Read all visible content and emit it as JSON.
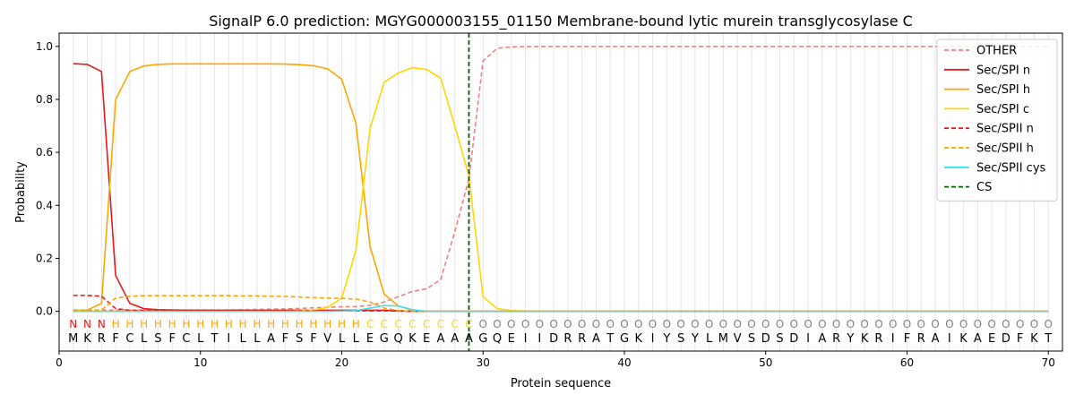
{
  "chart_data": {
    "type": "line",
    "title": "SignalP 6.0 prediction: MGYG000003155_01150 Membrane-bound lytic murein transglycosylase C",
    "xlabel": "Protein sequence",
    "ylabel": "Probability",
    "xlim": [
      0,
      71
    ],
    "ylim": [
      -0.15,
      1.05
    ],
    "xticks": [
      0,
      10,
      20,
      30,
      40,
      50,
      60,
      70
    ],
    "yticks": [
      0.0,
      0.2,
      0.4,
      0.6,
      0.8,
      1.0
    ],
    "ytick_labels": [
      "0.0",
      "0.2",
      "0.4",
      "0.6",
      "0.8",
      "1.0"
    ],
    "grid": "vertical lines at each residue",
    "legend_position": "top-right",
    "cleavage_site": {
      "name": "CS",
      "x": 29,
      "color": "#006400"
    },
    "sequence": [
      "M",
      "K",
      "R",
      "F",
      "C",
      "L",
      "S",
      "F",
      "C",
      "L",
      "T",
      "I",
      "L",
      "L",
      "A",
      "F",
      "S",
      "F",
      "V",
      "L",
      "L",
      "E",
      "G",
      "Q",
      "K",
      "E",
      "A",
      "A",
      "A",
      "G",
      "Q",
      "E",
      "I",
      "I",
      "D",
      "R",
      "R",
      "A",
      "T",
      "G",
      "K",
      "I",
      "Y",
      "S",
      "Y",
      "L",
      "M",
      "V",
      "S",
      "D",
      "S",
      "D",
      "I",
      "A",
      "R",
      "Y",
      "K",
      "R",
      "I",
      "F",
      "R",
      "A",
      "I",
      "K",
      "A",
      "E",
      "D",
      "F",
      "K",
      "T"
    ],
    "labels": [
      "N",
      "N",
      "N",
      "H",
      "H",
      "H",
      "H",
      "H",
      "H",
      "H",
      "H",
      "H",
      "H",
      "H",
      "H",
      "H",
      "H",
      "H",
      "H",
      "H",
      "H",
      "C",
      "C",
      "C",
      "C",
      "C",
      "C",
      "C",
      "C",
      "O",
      "O",
      "O",
      "O",
      "O",
      "O",
      "O",
      "O",
      "O",
      "O",
      "O",
      "O",
      "O",
      "O",
      "O",
      "O",
      "O",
      "O",
      "O",
      "O",
      "O",
      "O",
      "O",
      "O",
      "O",
      "O",
      "O",
      "O",
      "O",
      "O",
      "O",
      "O",
      "O",
      "O",
      "O",
      "O",
      "O",
      "O",
      "O",
      "O",
      "O"
    ],
    "label_colors": {
      "N": "#e41a1c",
      "H": "#ffa500",
      "C": "#ffd700",
      "O": "#808080"
    },
    "x": [
      1,
      2,
      3,
      4,
      5,
      6,
      7,
      8,
      9,
      10,
      11,
      12,
      13,
      14,
      15,
      16,
      17,
      18,
      19,
      20,
      21,
      22,
      23,
      24,
      25,
      26,
      27,
      28,
      29,
      30,
      31,
      32,
      33,
      34,
      35,
      36,
      37,
      38,
      39,
      40,
      41,
      42,
      43,
      44,
      45,
      46,
      47,
      48,
      49,
      50,
      51,
      52,
      53,
      54,
      55,
      56,
      57,
      58,
      59,
      60,
      61,
      62,
      63,
      64,
      65,
      66,
      67,
      68,
      69,
      70
    ],
    "series": [
      {
        "name": "OTHER",
        "color": "#f08080",
        "dash": "dashed",
        "values": [
          0.005,
          0.005,
          0.005,
          0.005,
          0.005,
          0.005,
          0.005,
          0.005,
          0.005,
          0.005,
          0.005,
          0.005,
          0.006,
          0.007,
          0.008,
          0.009,
          0.011,
          0.013,
          0.015,
          0.017,
          0.018,
          0.022,
          0.035,
          0.055,
          0.075,
          0.085,
          0.12,
          0.3,
          0.5,
          0.945,
          0.993,
          0.998,
          0.999,
          1.0,
          1.0,
          1.0,
          1.0,
          1.0,
          1.0,
          1.0,
          1.0,
          1.0,
          1.0,
          1.0,
          1.0,
          1.0,
          1.0,
          1.0,
          1.0,
          1.0,
          1.0,
          1.0,
          1.0,
          1.0,
          1.0,
          1.0,
          1.0,
          1.0,
          1.0,
          1.0,
          1.0,
          1.0,
          1.0,
          1.0,
          1.0,
          1.0,
          1.0,
          1.0,
          1.0,
          1.0
        ]
      },
      {
        "name": "Sec/SPI n",
        "color": "#e41a1c",
        "dash": "solid",
        "values": [
          0.935,
          0.932,
          0.905,
          0.135,
          0.03,
          0.01,
          0.006,
          0.005,
          0.004,
          0.004,
          0.004,
          0.004,
          0.004,
          0.004,
          0.004,
          0.004,
          0.004,
          0.004,
          0.004,
          0.004,
          0.004,
          0.004,
          0.004,
          0.002,
          0.0,
          0.0,
          0.0,
          0.0,
          0.0,
          0.0,
          0.0,
          0.0,
          0.0,
          0.0,
          0.0,
          0.0,
          0.0,
          0.0,
          0.0,
          0.0,
          0.0,
          0.0,
          0.0,
          0.0,
          0.0,
          0.0,
          0.0,
          0.0,
          0.0,
          0.0,
          0.0,
          0.0,
          0.0,
          0.0,
          0.0,
          0.0,
          0.0,
          0.0,
          0.0,
          0.0,
          0.0,
          0.0,
          0.0,
          0.0,
          0.0,
          0.0,
          0.0,
          0.0,
          0.0,
          0.0
        ]
      },
      {
        "name": "Sec/SPI h",
        "color": "#ffa500",
        "dash": "solid",
        "values": [
          0.002,
          0.005,
          0.03,
          0.8,
          0.905,
          0.926,
          0.932,
          0.934,
          0.934,
          0.934,
          0.934,
          0.934,
          0.934,
          0.934,
          0.934,
          0.933,
          0.931,
          0.927,
          0.915,
          0.876,
          0.71,
          0.245,
          0.065,
          0.02,
          0.004,
          0.0,
          0.0,
          0.0,
          0.0,
          0.0,
          0.0,
          0.0,
          0.0,
          0.0,
          0.0,
          0.0,
          0.0,
          0.0,
          0.0,
          0.0,
          0.0,
          0.0,
          0.0,
          0.0,
          0.0,
          0.0,
          0.0,
          0.0,
          0.0,
          0.0,
          0.0,
          0.0,
          0.0,
          0.0,
          0.0,
          0.0,
          0.0,
          0.0,
          0.0,
          0.0,
          0.0,
          0.0,
          0.0,
          0.0,
          0.0,
          0.0,
          0.0,
          0.0,
          0.0,
          0.0
        ]
      },
      {
        "name": "Sec/SPI c",
        "color": "#ffd700",
        "dash": "solid",
        "values": [
          0.0,
          0.0,
          0.0,
          0.0,
          0.0,
          0.0,
          0.0,
          0.0,
          0.0,
          0.0,
          0.0,
          0.0,
          0.0,
          0.0,
          0.0,
          0.0,
          0.002,
          0.005,
          0.015,
          0.05,
          0.23,
          0.69,
          0.865,
          0.9,
          0.92,
          0.913,
          0.88,
          0.7,
          0.51,
          0.055,
          0.01,
          0.003,
          0.001,
          0.0,
          0.0,
          0.0,
          0.0,
          0.0,
          0.0,
          0.0,
          0.0,
          0.0,
          0.0,
          0.0,
          0.0,
          0.0,
          0.0,
          0.0,
          0.0,
          0.0,
          0.0,
          0.0,
          0.0,
          0.0,
          0.0,
          0.0,
          0.0,
          0.0,
          0.0,
          0.0,
          0.0,
          0.0,
          0.0,
          0.0,
          0.0,
          0.0,
          0.0,
          0.0,
          0.0,
          0.0
        ]
      },
      {
        "name": "Sec/SPII n",
        "color": "#e41a1c",
        "dash": "dashed",
        "values": [
          0.06,
          0.06,
          0.057,
          0.01,
          0.004,
          0.003,
          0.002,
          0.002,
          0.002,
          0.002,
          0.002,
          0.002,
          0.002,
          0.002,
          0.002,
          0.002,
          0.002,
          0.002,
          0.002,
          0.002,
          0.002,
          0.002,
          0.002,
          0.001,
          0.0,
          0.0,
          0.0,
          0.0,
          0.0,
          0.0,
          0.0,
          0.0,
          0.0,
          0.0,
          0.0,
          0.0,
          0.0,
          0.0,
          0.0,
          0.0,
          0.0,
          0.0,
          0.0,
          0.0,
          0.0,
          0.0,
          0.0,
          0.0,
          0.0,
          0.0,
          0.0,
          0.0,
          0.0,
          0.0,
          0.0,
          0.0,
          0.0,
          0.0,
          0.0,
          0.0,
          0.0,
          0.0,
          0.0,
          0.0,
          0.0,
          0.0,
          0.0,
          0.0,
          0.0,
          0.0
        ]
      },
      {
        "name": "Sec/SPII h",
        "color": "#ffa500",
        "dash": "dashed",
        "values": [
          0.0,
          0.0,
          0.005,
          0.05,
          0.057,
          0.059,
          0.059,
          0.059,
          0.059,
          0.059,
          0.059,
          0.059,
          0.058,
          0.058,
          0.057,
          0.056,
          0.054,
          0.052,
          0.05,
          0.049,
          0.046,
          0.035,
          0.012,
          0.003,
          0.0,
          0.0,
          0.0,
          0.0,
          0.0,
          0.0,
          0.0,
          0.0,
          0.0,
          0.0,
          0.0,
          0.0,
          0.0,
          0.0,
          0.0,
          0.0,
          0.0,
          0.0,
          0.0,
          0.0,
          0.0,
          0.0,
          0.0,
          0.0,
          0.0,
          0.0,
          0.0,
          0.0,
          0.0,
          0.0,
          0.0,
          0.0,
          0.0,
          0.0,
          0.0,
          0.0,
          0.0,
          0.0,
          0.0,
          0.0,
          0.0,
          0.0,
          0.0,
          0.0,
          0.0,
          0.0
        ]
      },
      {
        "name": "Sec/SPII cys",
        "color": "#40e0e0",
        "dash": "solid",
        "values": [
          0.0,
          0.0,
          0.0,
          0.0,
          0.0,
          0.0,
          0.0,
          0.0,
          0.0,
          0.0,
          0.0,
          0.0,
          0.0,
          0.0,
          0.0,
          0.0,
          0.0,
          0.0,
          0.0,
          0.001,
          0.003,
          0.012,
          0.022,
          0.02,
          0.006,
          0.0,
          0.0,
          0.0,
          0.0,
          0.0,
          0.0,
          0.0,
          0.0,
          0.0,
          0.0,
          0.0,
          0.0,
          0.0,
          0.0,
          0.0,
          0.0,
          0.0,
          0.0,
          0.0,
          0.0,
          0.0,
          0.0,
          0.0,
          0.0,
          0.0,
          0.0,
          0.0,
          0.0,
          0.0,
          0.0,
          0.0,
          0.0,
          0.0,
          0.0,
          0.0,
          0.0,
          0.0,
          0.0,
          0.0,
          0.0,
          0.0,
          0.0,
          0.0,
          0.0,
          0.0
        ]
      }
    ]
  }
}
